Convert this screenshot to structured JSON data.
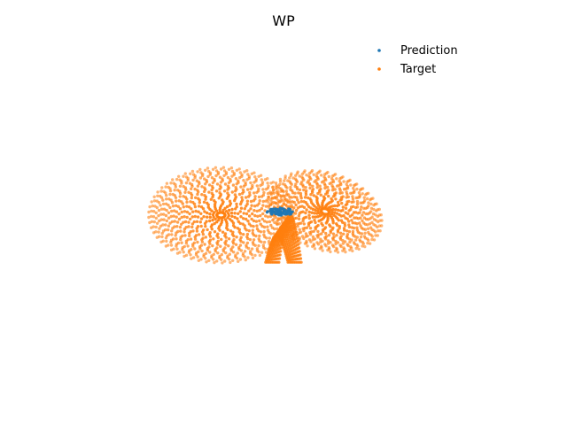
{
  "chart_data": {
    "type": "scatter",
    "title": "WP",
    "axes_visible": false,
    "grid": false,
    "legend_position": "upper-right",
    "series": [
      {
        "name": "Prediction",
        "color": "#1f77b4",
        "shape": "compact cluster of points at the junction between the two lobes",
        "points": [
          [
            -0.2,
            0.22
          ],
          [
            0.0,
            0.25
          ],
          [
            0.2,
            0.23
          ],
          [
            0.35,
            0.18
          ],
          [
            0.5,
            0.16
          ],
          [
            0.1,
            0.1
          ],
          [
            -0.1,
            0.14
          ],
          [
            0.3,
            0.08
          ],
          [
            0.45,
            0.06
          ],
          [
            0.0,
            0.05
          ],
          [
            0.6,
            0.12
          ],
          [
            0.2,
            0.02
          ],
          [
            -0.15,
            0.04
          ],
          [
            0.4,
            0.2
          ],
          [
            0.1,
            0.18
          ]
        ]
      },
      {
        "name": "Target",
        "color": "#ff7f0e",
        "shape": "two-lobed Lorenz-type butterfly attractor",
        "lobes": [
          {
            "center": [
              -2.2,
              0.0
            ],
            "max_radius": 2.6,
            "tilt_deg": 0
          },
          {
            "center": [
              2.0,
              0.15
            ],
            "max_radius": 2.1,
            "tilt_deg": -18
          }
        ]
      }
    ]
  }
}
